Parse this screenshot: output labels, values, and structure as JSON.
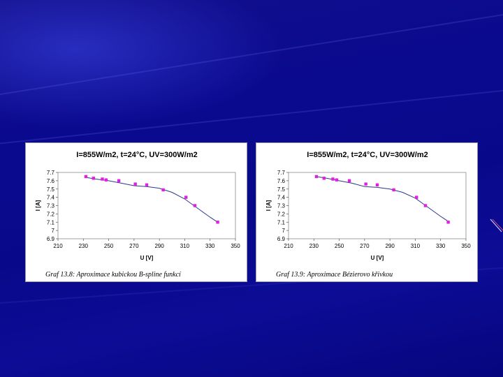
{
  "colors": {
    "background": "#0a0a8f",
    "marker": "#e020e0",
    "curve": "#2a3a8a",
    "plot_border": "#8a8a8a"
  },
  "chart_data": [
    {
      "type": "scatter",
      "title": "I=855W/m2, t=24°C, UV=300W/m2",
      "xlabel": "U [V]",
      "ylabel": "I [A]",
      "xlim": [
        210,
        350
      ],
      "ylim": [
        6.9,
        7.7
      ],
      "x_ticks": [
        "210",
        "230",
        "250",
        "270",
        "290",
        "310",
        "330",
        "350"
      ],
      "y_ticks": [
        "6.9",
        "7",
        "7.1",
        "7.2",
        "7.3",
        "7.4",
        "7.5",
        "7.6",
        "7.7"
      ],
      "grid": false,
      "points": {
        "x": [
          232,
          238,
          245,
          248,
          258,
          271,
          280,
          293,
          311,
          318,
          336
        ],
        "y": [
          7.65,
          7.63,
          7.62,
          7.61,
          7.6,
          7.56,
          7.55,
          7.49,
          7.4,
          7.3,
          7.1
        ]
      },
      "fit_curve": {
        "x": [
          232,
          240,
          250,
          260,
          270,
          280,
          290,
          300,
          310,
          320,
          330,
          336
        ],
        "y": [
          7.64,
          7.62,
          7.6,
          7.57,
          7.54,
          7.53,
          7.51,
          7.46,
          7.38,
          7.27,
          7.16,
          7.1
        ]
      },
      "caption": "Graf 13.8: Aproximace kubickou B-spline funkcí"
    },
    {
      "type": "scatter",
      "title": "I=855W/m2, t=24°C, UV=300W/m2",
      "xlabel": "U [V]",
      "ylabel": "I [A]",
      "xlim": [
        210,
        350
      ],
      "ylim": [
        6.9,
        7.7
      ],
      "x_ticks": [
        "210",
        "230",
        "250",
        "270",
        "290",
        "310",
        "330",
        "350"
      ],
      "y_ticks": [
        "6.9",
        "7",
        "7.1",
        "7.2",
        "7.3",
        "7.4",
        "7.5",
        "7.6",
        "7.7"
      ],
      "grid": false,
      "points": {
        "x": [
          232,
          238,
          245,
          248,
          258,
          271,
          280,
          293,
          311,
          318,
          336
        ],
        "y": [
          7.65,
          7.63,
          7.62,
          7.61,
          7.6,
          7.56,
          7.55,
          7.49,
          7.4,
          7.3,
          7.1
        ]
      },
      "fit_curve": {
        "x": [
          232,
          240,
          250,
          260,
          270,
          280,
          290,
          300,
          310,
          320,
          330,
          336
        ],
        "y": [
          7.65,
          7.63,
          7.6,
          7.57,
          7.53,
          7.52,
          7.5,
          7.46,
          7.39,
          7.28,
          7.17,
          7.11
        ]
      },
      "caption": "Graf 13.9: Aproximace Bézierovo křivkou"
    }
  ]
}
